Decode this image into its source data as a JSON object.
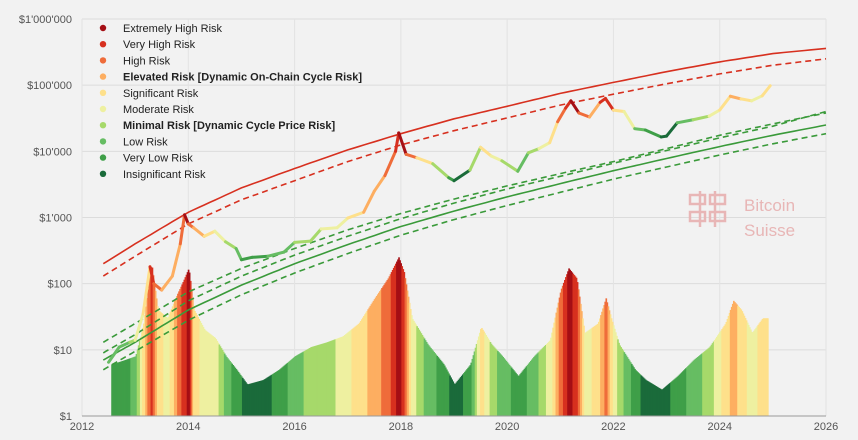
{
  "chart_data": {
    "type": "line",
    "title": "",
    "xlabel": "",
    "ylabel": "",
    "y_scale": "log",
    "xlim": [
      2012,
      2026
    ],
    "ylim": [
      1,
      1000000
    ],
    "grid": true,
    "legend_position": "top-left",
    "x_tick_labels": [
      "2012",
      "2014",
      "2016",
      "2018",
      "2020",
      "2022",
      "2024",
      "2026"
    ],
    "x_ticks": [
      2012,
      2014,
      2016,
      2018,
      2020,
      2022,
      2024,
      2026
    ],
    "y_tick_labels": [
      "$1",
      "$10",
      "$100",
      "$1'000",
      "$10'000",
      "$100'000",
      "$1'000'000"
    ],
    "y_ticks": [
      1,
      10,
      100,
      1000,
      10000,
      100000,
      1000000
    ],
    "risk_legend": [
      {
        "label": "Extremely High Risk",
        "color": "#a50f15",
        "bold": false
      },
      {
        "label": "Very High Risk",
        "color": "#d7301f",
        "bold": false
      },
      {
        "label": "High Risk",
        "color": "#ef6c3a",
        "bold": false
      },
      {
        "label": "Elevated Risk [Dynamic On-Chain Cycle Risk]",
        "color": "#fdae61",
        "bold": true
      },
      {
        "label": "Significant Risk",
        "color": "#fee08b",
        "bold": false
      },
      {
        "label": "Moderate Risk",
        "color": "#eef0a0",
        "bold": false
      },
      {
        "label": "Minimal Risk [Dynamic Cycle Price Risk]",
        "color": "#a6d96a",
        "bold": true
      },
      {
        "label": "Low Risk",
        "color": "#66bd63",
        "bold": false
      },
      {
        "label": "Very Low Risk",
        "color": "#3f9f48",
        "bold": false
      },
      {
        "label": "Insignificant Risk",
        "color": "#1a6b3a",
        "bold": false
      }
    ],
    "band_lines": [
      {
        "name": "upper",
        "color": "#d7301f",
        "dash": false,
        "points": [
          [
            2012.4,
            200
          ],
          [
            2013,
            400
          ],
          [
            2014,
            1200
          ],
          [
            2015,
            2800
          ],
          [
            2016,
            5500
          ],
          [
            2017,
            10500
          ],
          [
            2018,
            18500
          ],
          [
            2019,
            31000
          ],
          [
            2020,
            48000
          ],
          [
            2021,
            75000
          ],
          [
            2022,
            110000
          ],
          [
            2023,
            160000
          ],
          [
            2024,
            225000
          ],
          [
            2025,
            300000
          ],
          [
            2026,
            360000
          ]
        ]
      },
      {
        "name": "upper-dashed",
        "color": "#d7301f",
        "dash": true,
        "points": [
          [
            2012.4,
            130
          ],
          [
            2013,
            260
          ],
          [
            2014,
            800
          ],
          [
            2015,
            1850
          ],
          [
            2016,
            3600
          ],
          [
            2017,
            7000
          ],
          [
            2018,
            12500
          ],
          [
            2019,
            20500
          ],
          [
            2020,
            32000
          ],
          [
            2021,
            50000
          ],
          [
            2022,
            73000
          ],
          [
            2023,
            105000
          ],
          [
            2024,
            148000
          ],
          [
            2025,
            200000
          ],
          [
            2026,
            250000
          ]
        ]
      },
      {
        "name": "lower-dashed-1",
        "color": "#3a9a3a",
        "dash": true,
        "points": [
          [
            2012.4,
            13
          ],
          [
            2013,
            25
          ],
          [
            2014,
            75
          ],
          [
            2015,
            170
          ],
          [
            2016,
            340
          ],
          [
            2017,
            650
          ],
          [
            2018,
            1150
          ],
          [
            2019,
            1900
          ],
          [
            2020,
            3000
          ],
          [
            2021,
            4600
          ],
          [
            2022,
            7000
          ],
          [
            2023,
            11000
          ],
          [
            2024,
            17500
          ],
          [
            2025,
            26000
          ],
          [
            2026,
            38000
          ]
        ]
      },
      {
        "name": "lower-dashed-2",
        "color": "#3a9a3a",
        "dash": true,
        "points": [
          [
            2012.4,
            9
          ],
          [
            2013,
            17
          ],
          [
            2014,
            55
          ],
          [
            2015,
            130
          ],
          [
            2016,
            270
          ],
          [
            2017,
            520
          ],
          [
            2018,
            960
          ],
          [
            2019,
            1650
          ],
          [
            2020,
            2700
          ],
          [
            2021,
            4200
          ],
          [
            2022,
            6600
          ],
          [
            2023,
            10300
          ],
          [
            2024,
            16000
          ],
          [
            2025,
            24000
          ],
          [
            2026,
            40000
          ]
        ]
      },
      {
        "name": "lower-solid",
        "color": "#3a9a3a",
        "dash": false,
        "points": [
          [
            2012.4,
            7
          ],
          [
            2013,
            13
          ],
          [
            2014,
            40
          ],
          [
            2015,
            95
          ],
          [
            2016,
            200
          ],
          [
            2017,
            390
          ],
          [
            2018,
            730
          ],
          [
            2019,
            1250
          ],
          [
            2020,
            2050
          ],
          [
            2021,
            3250
          ],
          [
            2022,
            5100
          ],
          [
            2023,
            7800
          ],
          [
            2024,
            11800
          ],
          [
            2025,
            17500
          ],
          [
            2026,
            25000
          ]
        ]
      },
      {
        "name": "lower-dashed-3",
        "color": "#3a9a3a",
        "dash": true,
        "points": [
          [
            2012.4,
            5
          ],
          [
            2013,
            9.5
          ],
          [
            2014,
            28
          ],
          [
            2015,
            68
          ],
          [
            2016,
            145
          ],
          [
            2017,
            285
          ],
          [
            2018,
            540
          ],
          [
            2019,
            930
          ],
          [
            2020,
            1520
          ],
          [
            2021,
            2400
          ],
          [
            2022,
            3800
          ],
          [
            2023,
            5800
          ],
          [
            2024,
            8800
          ],
          [
            2025,
            13000
          ],
          [
            2026,
            18500
          ]
        ]
      }
    ],
    "price": {
      "name": "BTC price",
      "points": [
        [
          2012.5,
          6.5,
          7
        ],
        [
          2012.7,
          11,
          7
        ],
        [
          2012.9,
          13,
          6
        ],
        [
          2013.0,
          14,
          5
        ],
        [
          2013.15,
          35,
          4
        ],
        [
          2013.28,
          180,
          1
        ],
        [
          2013.35,
          100,
          2
        ],
        [
          2013.5,
          80,
          3
        ],
        [
          2013.7,
          130,
          3
        ],
        [
          2013.85,
          400,
          2
        ],
        [
          2013.93,
          1100,
          0
        ],
        [
          2014.0,
          800,
          2
        ],
        [
          2014.1,
          700,
          3
        ],
        [
          2014.3,
          520,
          4
        ],
        [
          2014.5,
          620,
          5
        ],
        [
          2014.7,
          430,
          6
        ],
        [
          2014.9,
          340,
          7
        ],
        [
          2015.0,
          230,
          8
        ],
        [
          2015.2,
          250,
          8
        ],
        [
          2015.5,
          260,
          7
        ],
        [
          2015.8,
          300,
          7
        ],
        [
          2016.0,
          420,
          6
        ],
        [
          2016.3,
          440,
          6
        ],
        [
          2016.5,
          670,
          5
        ],
        [
          2016.8,
          700,
          5
        ],
        [
          2017.0,
          980,
          4
        ],
        [
          2017.3,
          1200,
          3
        ],
        [
          2017.5,
          2500,
          3
        ],
        [
          2017.7,
          4300,
          2
        ],
        [
          2017.9,
          10000,
          1
        ],
        [
          2017.96,
          19000,
          0
        ],
        [
          2018.1,
          9000,
          2
        ],
        [
          2018.3,
          8000,
          4
        ],
        [
          2018.6,
          6500,
          6
        ],
        [
          2018.9,
          4000,
          8
        ],
        [
          2019.0,
          3600,
          9
        ],
        [
          2019.3,
          5200,
          6
        ],
        [
          2019.5,
          11500,
          4
        ],
        [
          2019.7,
          8500,
          5
        ],
        [
          2019.9,
          7200,
          6
        ],
        [
          2020.2,
          5000,
          7
        ],
        [
          2020.4,
          9500,
          6
        ],
        [
          2020.6,
          11000,
          5
        ],
        [
          2020.8,
          13500,
          4
        ],
        [
          2020.95,
          28000,
          2
        ],
        [
          2021.1,
          45000,
          1
        ],
        [
          2021.2,
          58000,
          0
        ],
        [
          2021.35,
          38000,
          2
        ],
        [
          2021.55,
          33000,
          3
        ],
        [
          2021.75,
          55000,
          1
        ],
        [
          2021.85,
          63000,
          1
        ],
        [
          2022.0,
          42000,
          4
        ],
        [
          2022.2,
          40000,
          5
        ],
        [
          2022.4,
          22000,
          7
        ],
        [
          2022.6,
          21000,
          8
        ],
        [
          2022.9,
          16500,
          9
        ],
        [
          2023.0,
          17000,
          9
        ],
        [
          2023.2,
          27000,
          7
        ],
        [
          2023.5,
          30000,
          6
        ],
        [
          2023.8,
          34000,
          5
        ],
        [
          2024.0,
          42000,
          4
        ],
        [
          2024.2,
          68000,
          3
        ],
        [
          2024.4,
          62000,
          4
        ],
        [
          2024.6,
          58000,
          5
        ],
        [
          2024.8,
          69000,
          4
        ],
        [
          2024.95,
          98000,
          3
        ]
      ]
    },
    "risk_oscillator": {
      "name": "Dynamic On-Chain Cycle Risk",
      "points": [
        [
          2012.55,
          6,
          8
        ],
        [
          2012.8,
          7,
          8
        ],
        [
          2013.0,
          8,
          7
        ],
        [
          2013.15,
          25,
          4
        ],
        [
          2013.25,
          110,
          2
        ],
        [
          2013.3,
          200,
          1
        ],
        [
          2013.42,
          40,
          4
        ],
        [
          2013.6,
          30,
          5
        ],
        [
          2013.75,
          60,
          3
        ],
        [
          2013.9,
          110,
          1
        ],
        [
          2014.0,
          170,
          0
        ],
        [
          2014.1,
          40,
          4
        ],
        [
          2014.3,
          20,
          5
        ],
        [
          2014.5,
          15,
          5
        ],
        [
          2014.7,
          8,
          7
        ],
        [
          2014.9,
          5,
          8
        ],
        [
          2015.1,
          3,
          9
        ],
        [
          2015.4,
          3.5,
          9
        ],
        [
          2015.7,
          5,
          8
        ],
        [
          2016.0,
          8,
          7
        ],
        [
          2016.3,
          11,
          6
        ],
        [
          2016.6,
          13,
          6
        ],
        [
          2016.9,
          16,
          5
        ],
        [
          2017.2,
          25,
          4
        ],
        [
          2017.5,
          60,
          3
        ],
        [
          2017.75,
          120,
          2
        ],
        [
          2017.95,
          250,
          0
        ],
        [
          2018.05,
          150,
          1
        ],
        [
          2018.2,
          30,
          5
        ],
        [
          2018.5,
          12,
          7
        ],
        [
          2018.8,
          6,
          8
        ],
        [
          2019.0,
          3,
          9
        ],
        [
          2019.3,
          6,
          8
        ],
        [
          2019.5,
          22,
          4
        ],
        [
          2019.7,
          12,
          6
        ],
        [
          2019.9,
          8,
          7
        ],
        [
          2020.2,
          4,
          8
        ],
        [
          2020.5,
          8,
          7
        ],
        [
          2020.8,
          14,
          5
        ],
        [
          2021.0,
          80,
          2
        ],
        [
          2021.15,
          170,
          0
        ],
        [
          2021.3,
          120,
          1
        ],
        [
          2021.45,
          18,
          5
        ],
        [
          2021.7,
          25,
          4
        ],
        [
          2021.85,
          60,
          2
        ],
        [
          2021.95,
          30,
          4
        ],
        [
          2022.1,
          12,
          6
        ],
        [
          2022.4,
          5,
          8
        ],
        [
          2022.6,
          3.5,
          9
        ],
        [
          2022.9,
          2.5,
          9
        ],
        [
          2023.2,
          4,
          8
        ],
        [
          2023.5,
          7,
          7
        ],
        [
          2023.8,
          11,
          6
        ],
        [
          2024.1,
          25,
          4
        ],
        [
          2024.25,
          55,
          3
        ],
        [
          2024.4,
          40,
          4
        ],
        [
          2024.6,
          18,
          5
        ],
        [
          2024.8,
          30,
          4
        ],
        [
          2024.9,
          30,
          4
        ]
      ]
    }
  },
  "watermark": {
    "line1": "Bitcoin",
    "line2": "Suisse",
    "color": "#e8b6b6"
  }
}
